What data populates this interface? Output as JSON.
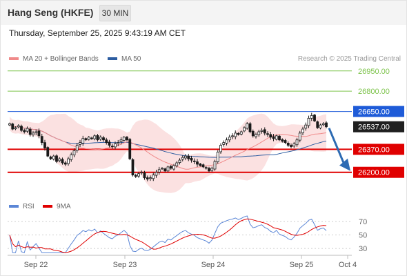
{
  "header": {
    "title": "Hang Seng (HKFE)",
    "timeframe": "30 MIN"
  },
  "timestamp": "Thursday, September 25, 2025 9:43:19 AM CET",
  "legend": [
    {
      "label": "MA 20 + Bollinger Bands",
      "color": "#f08a8a"
    },
    {
      "label": "MA 50",
      "color": "#2d5da1"
    }
  ],
  "rsi_legend": [
    {
      "label": "RSI",
      "color": "#5b86d6"
    },
    {
      "label": "9MA",
      "color": "#e00000"
    }
  ],
  "credit": "Research © 2025 Trading Central",
  "colors": {
    "target_green": "#7cc34a",
    "pivot_blue": "#1e5bd8",
    "support_red": "#e00000",
    "current_dark": "#1f1f1f",
    "arrow": "#2d6bb3"
  },
  "chart_data": [
    {
      "type": "candlestick",
      "ylim": [
        26020,
        27000
      ],
      "x_labels": [
        "Sep 22",
        "Sep 23",
        "Sep 24",
        "Sep 25",
        "Oct 4"
      ],
      "levels": [
        {
          "label": "26950.00",
          "value": 26950,
          "kind": "target"
        },
        {
          "label": "26800.00",
          "value": 26800,
          "kind": "target"
        },
        {
          "label": "26650.00",
          "value": 26650,
          "kind": "pivot"
        },
        {
          "label": "26537.00",
          "value": 26537,
          "kind": "current"
        },
        {
          "label": "26370.00",
          "value": 26370,
          "kind": "support"
        },
        {
          "label": "26200.00",
          "value": 26200,
          "kind": "support"
        }
      ],
      "close": [
        26560,
        26520,
        26530,
        26545,
        26510,
        26500,
        26525,
        26480,
        26490,
        26500,
        26470,
        26420,
        26380,
        26320,
        26300,
        26320,
        26280,
        26300,
        26270,
        26260,
        26300,
        26330,
        26360,
        26400,
        26420,
        26450,
        26440,
        26460,
        26450,
        26470,
        26440,
        26460,
        26440,
        26420,
        26400,
        26390,
        26410,
        26420,
        26440,
        26460,
        26440,
        26300,
        26180,
        26170,
        26190,
        26200,
        26160,
        26150,
        26160,
        26180,
        26200,
        26220,
        26230,
        26210,
        26240,
        26230,
        26250,
        26270,
        26290,
        26310,
        26320,
        26300,
        26290,
        26280,
        26260,
        26250,
        26240,
        26230,
        26210,
        26230,
        26280,
        26350,
        26400,
        26420,
        26440,
        26460,
        26470,
        26490,
        26480,
        26500,
        26530,
        26560,
        26500,
        26470,
        26480,
        26500,
        26510,
        26490,
        26480,
        26460,
        26450,
        26470,
        26440,
        26430,
        26420,
        26400,
        26390,
        26410,
        26440,
        26490,
        26520,
        26550,
        26600,
        26620,
        26580,
        26530,
        26550,
        26560,
        26537
      ],
      "rsi": {
        "ylim": [
          20,
          80
        ],
        "ticks": [
          70,
          50,
          30
        ]
      }
    }
  ]
}
